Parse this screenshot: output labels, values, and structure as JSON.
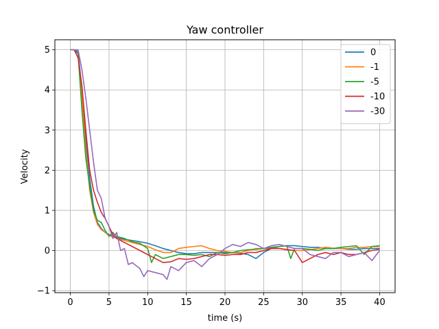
{
  "chart_data": {
    "type": "line",
    "title": "Yaw controller",
    "xlabel": "time (s)",
    "ylabel": "Velocity",
    "xlim": [
      -2,
      42
    ],
    "ylim": [
      -1.05,
      5.25
    ],
    "xticks": [
      0,
      5,
      10,
      15,
      20,
      25,
      30,
      35,
      40
    ],
    "yticks": [
      -1,
      0,
      1,
      2,
      3,
      4,
      5
    ],
    "grid": true,
    "legend_position": "top-right",
    "series": [
      {
        "name": "0",
        "color": "#1f77b4",
        "points": [
          [
            0,
            5.0
          ],
          [
            0.5,
            5.0
          ],
          [
            1,
            4.95
          ],
          [
            1.5,
            4.0
          ],
          [
            2,
            2.8
          ],
          [
            2.5,
            1.8
          ],
          [
            3,
            1.1
          ],
          [
            3.5,
            0.7
          ],
          [
            4,
            0.55
          ],
          [
            4.5,
            0.45
          ],
          [
            5,
            0.4
          ],
          [
            6,
            0.32
          ],
          [
            7,
            0.28
          ],
          [
            8,
            0.25
          ],
          [
            9,
            0.22
          ],
          [
            10,
            0.18
          ],
          [
            11,
            0.12
          ],
          [
            12,
            0.05
          ],
          [
            13,
            0.0
          ],
          [
            14,
            -0.05
          ],
          [
            15,
            -0.08
          ],
          [
            16,
            -0.08
          ],
          [
            17,
            -0.05
          ],
          [
            18,
            -0.05
          ],
          [
            19,
            -0.05
          ],
          [
            20,
            -0.05
          ],
          [
            21,
            -0.05
          ],
          [
            22,
            -0.07
          ],
          [
            23,
            -0.1
          ],
          [
            24,
            -0.2
          ],
          [
            25,
            -0.05
          ],
          [
            26,
            0.05
          ],
          [
            27,
            0.1
          ],
          [
            28,
            0.12
          ],
          [
            29,
            0.12
          ],
          [
            30,
            0.1
          ],
          [
            31,
            0.08
          ],
          [
            32,
            0.08
          ],
          [
            33,
            0.05
          ],
          [
            34,
            0.05
          ],
          [
            35,
            0.05
          ],
          [
            36,
            0.03
          ],
          [
            37,
            0.03
          ],
          [
            38,
            0.05
          ],
          [
            39,
            0.05
          ],
          [
            40,
            0.05
          ]
        ]
      },
      {
        "name": "-1",
        "color": "#ff7f0e",
        "points": [
          [
            0,
            5.0
          ],
          [
            0.5,
            5.0
          ],
          [
            1,
            4.9
          ],
          [
            1.5,
            3.8
          ],
          [
            2,
            2.5
          ],
          [
            2.5,
            1.5
          ],
          [
            3,
            0.95
          ],
          [
            3.5,
            0.65
          ],
          [
            4,
            0.52
          ],
          [
            4.5,
            0.45
          ],
          [
            5,
            0.38
          ],
          [
            6,
            0.3
          ],
          [
            7,
            0.25
          ],
          [
            8,
            0.2
          ],
          [
            9,
            0.15
          ],
          [
            10,
            0.1
          ],
          [
            11,
            0.02
          ],
          [
            12,
            -0.05
          ],
          [
            13,
            -0.05
          ],
          [
            14,
            0.05
          ],
          [
            15,
            0.08
          ],
          [
            16,
            0.1
          ],
          [
            17,
            0.12
          ],
          [
            18,
            0.05
          ],
          [
            19,
            0.0
          ],
          [
            20,
            -0.02
          ],
          [
            21,
            -0.05
          ],
          [
            22,
            -0.05
          ],
          [
            23,
            0.0
          ],
          [
            24,
            0.05
          ],
          [
            25,
            0.05
          ],
          [
            26,
            0.05
          ],
          [
            27,
            0.05
          ],
          [
            28,
            0.03
          ],
          [
            29,
            0.0
          ],
          [
            30,
            0.0
          ],
          [
            31,
            0.02
          ],
          [
            32,
            0.05
          ],
          [
            33,
            0.08
          ],
          [
            34,
            0.06
          ],
          [
            35,
            0.05
          ],
          [
            36,
            0.05
          ],
          [
            37,
            0.08
          ],
          [
            38,
            0.08
          ],
          [
            39,
            0.1
          ],
          [
            40,
            0.1
          ]
        ]
      },
      {
        "name": "-5",
        "color": "#2ca02c",
        "points": [
          [
            0,
            5.0
          ],
          [
            0.5,
            5.0
          ],
          [
            1,
            4.9
          ],
          [
            1.5,
            3.5
          ],
          [
            2,
            2.3
          ],
          [
            2.5,
            1.6
          ],
          [
            3,
            1.0
          ],
          [
            3.5,
            0.75
          ],
          [
            4,
            0.7
          ],
          [
            4.5,
            0.5
          ],
          [
            5,
            0.35
          ],
          [
            5.5,
            0.45
          ],
          [
            6,
            0.35
          ],
          [
            7,
            0.3
          ],
          [
            8,
            0.22
          ],
          [
            9,
            0.18
          ],
          [
            10,
            0.05
          ],
          [
            10.5,
            -0.3
          ],
          [
            11,
            -0.1
          ],
          [
            12,
            -0.2
          ],
          [
            13,
            -0.15
          ],
          [
            14,
            -0.1
          ],
          [
            15,
            -0.1
          ],
          [
            16,
            -0.12
          ],
          [
            17,
            -0.1
          ],
          [
            18,
            -0.15
          ],
          [
            19,
            -0.05
          ],
          [
            20,
            -0.08
          ],
          [
            21,
            -0.05
          ],
          [
            22,
            0.0
          ],
          [
            23,
            0.02
          ],
          [
            24,
            0.03
          ],
          [
            25,
            0.05
          ],
          [
            26,
            0.08
          ],
          [
            27,
            0.1
          ],
          [
            28,
            0.12
          ],
          [
            28.5,
            -0.2
          ],
          [
            29,
            0.05
          ],
          [
            30,
            0.05
          ],
          [
            31,
            0.03
          ],
          [
            32,
            0.0
          ],
          [
            33,
            0.05
          ],
          [
            34,
            0.05
          ],
          [
            35,
            0.08
          ],
          [
            36,
            0.1
          ],
          [
            37,
            0.12
          ],
          [
            38,
            -0.1
          ],
          [
            39,
            0.1
          ],
          [
            40,
            0.12
          ]
        ]
      },
      {
        "name": "-10",
        "color": "#d62728",
        "points": [
          [
            0,
            5.0
          ],
          [
            0.5,
            5.0
          ],
          [
            1,
            4.8
          ],
          [
            1.5,
            4.1
          ],
          [
            2,
            3.0
          ],
          [
            2.5,
            2.0
          ],
          [
            3,
            1.5
          ],
          [
            3.5,
            1.2
          ],
          [
            4,
            0.95
          ],
          [
            4.5,
            0.8
          ],
          [
            5,
            0.6
          ],
          [
            5.5,
            0.4
          ],
          [
            6,
            0.3
          ],
          [
            7,
            0.2
          ],
          [
            8,
            0.1
          ],
          [
            9,
            0.0
          ],
          [
            10,
            -0.1
          ],
          [
            11,
            -0.2
          ],
          [
            12,
            -0.3
          ],
          [
            13,
            -0.28
          ],
          [
            14,
            -0.2
          ],
          [
            15,
            -0.22
          ],
          [
            16,
            -0.2
          ],
          [
            17,
            -0.15
          ],
          [
            18,
            -0.1
          ],
          [
            19,
            -0.1
          ],
          [
            20,
            -0.12
          ],
          [
            21,
            -0.1
          ],
          [
            22,
            -0.1
          ],
          [
            23,
            -0.05
          ],
          [
            24,
            -0.05
          ],
          [
            25,
            0.0
          ],
          [
            26,
            0.05
          ],
          [
            27,
            0.05
          ],
          [
            28,
            0.02
          ],
          [
            29,
            0.0
          ],
          [
            30,
            -0.3
          ],
          [
            31,
            -0.2
          ],
          [
            32,
            -0.1
          ],
          [
            33,
            -0.05
          ],
          [
            34,
            -0.1
          ],
          [
            35,
            -0.05
          ],
          [
            36,
            -0.1
          ],
          [
            37,
            -0.1
          ],
          [
            38,
            -0.05
          ],
          [
            39,
            0.0
          ],
          [
            40,
            0.03
          ]
        ]
      },
      {
        "name": "-30",
        "color": "#9467bd",
        "points": [
          [
            0,
            5.0
          ],
          [
            0.5,
            5.0
          ],
          [
            1,
            5.0
          ],
          [
            1.5,
            4.5
          ],
          [
            2,
            3.8
          ],
          [
            2.5,
            3.0
          ],
          [
            3,
            2.2
          ],
          [
            3.5,
            1.5
          ],
          [
            4,
            1.3
          ],
          [
            4.5,
            0.8
          ],
          [
            5,
            0.6
          ],
          [
            5.5,
            0.3
          ],
          [
            6,
            0.45
          ],
          [
            6.5,
            0.0
          ],
          [
            7,
            0.05
          ],
          [
            7.5,
            -0.35
          ],
          [
            8,
            -0.3
          ],
          [
            9,
            -0.45
          ],
          [
            9.5,
            -0.65
          ],
          [
            10,
            -0.5
          ],
          [
            11,
            -0.55
          ],
          [
            12,
            -0.6
          ],
          [
            12.5,
            -0.72
          ],
          [
            13,
            -0.4
          ],
          [
            14,
            -0.5
          ],
          [
            15,
            -0.3
          ],
          [
            16,
            -0.25
          ],
          [
            17,
            -0.4
          ],
          [
            18,
            -0.2
          ],
          [
            19,
            -0.1
          ],
          [
            20,
            0.05
          ],
          [
            21,
            0.15
          ],
          [
            22,
            0.1
          ],
          [
            23,
            0.2
          ],
          [
            24,
            0.15
          ],
          [
            25,
            0.05
          ],
          [
            26,
            0.12
          ],
          [
            27,
            0.15
          ],
          [
            28,
            0.1
          ],
          [
            29,
            0.05
          ],
          [
            30,
            0.05
          ],
          [
            31,
            -0.1
          ],
          [
            32,
            -0.15
          ],
          [
            33,
            -0.2
          ],
          [
            34,
            -0.05
          ],
          [
            35,
            -0.05
          ],
          [
            36,
            -0.15
          ],
          [
            37,
            -0.1
          ],
          [
            38,
            -0.05
          ],
          [
            39,
            -0.25
          ],
          [
            40,
            0.0
          ]
        ]
      }
    ]
  }
}
